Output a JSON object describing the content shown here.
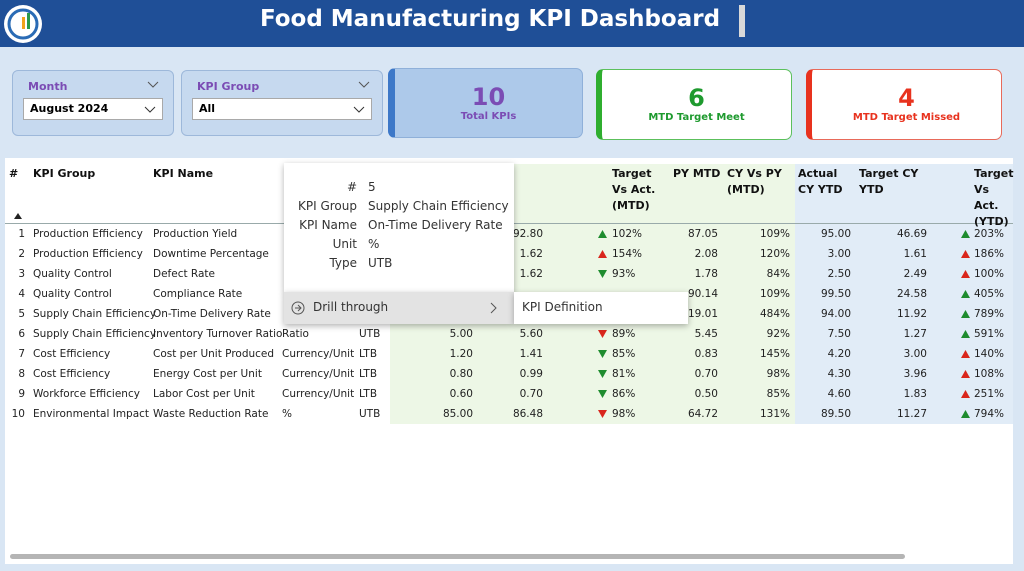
{
  "header": {
    "title": "Food Manufacturing KPI Dashboard"
  },
  "filters": [
    {
      "label": "Month",
      "value": "August 2024"
    },
    {
      "label": "KPI Group",
      "value": "All"
    }
  ],
  "cards": [
    {
      "value": "10",
      "label": "Total KPIs",
      "color": "#7b4cb4"
    },
    {
      "value": "6",
      "label": "MTD Target Meet",
      "color": "#1e9a2e"
    },
    {
      "value": "4",
      "label": "MTD Target Missed",
      "color": "#e8321e"
    }
  ],
  "table": {
    "headers": [
      "#",
      "KPI Group",
      "KPI Name",
      null,
      null,
      null,
      null,
      "Target Vs Act. (MTD)",
      "PY MTD",
      "CY Vs PY (MTD)",
      "Actual CY YTD",
      "Target CY YTD",
      "Target Vs Act. (YTD)"
    ],
    "rows": [
      {
        "cells": [
          "1",
          "Production Efficiency",
          "Production Yield",
          null,
          null,
          null,
          "92.80",
          "102%",
          "87.05",
          "109%",
          "95.00",
          "46.69",
          "203%"
        ],
        "arrows": [
          {
            "dir": "up",
            "color": "#1e8c2e"
          },
          {
            "dir": "up",
            "color": "#1e8c2e"
          }
        ]
      },
      {
        "cells": [
          "2",
          "Production Efficiency",
          "Downtime Percentage",
          null,
          null,
          null,
          "1.62",
          "154%",
          "2.08",
          "120%",
          "3.00",
          "1.61",
          "186%"
        ],
        "arrows": [
          {
            "dir": "up",
            "color": "#d9261c"
          },
          {
            "dir": "up",
            "color": "#d9261c"
          }
        ]
      },
      {
        "cells": [
          "3",
          "Quality Control",
          "Defect Rate",
          null,
          null,
          null,
          "1.62",
          "93%",
          "1.78",
          "84%",
          "2.50",
          "2.49",
          "100%"
        ],
        "arrows": [
          {
            "dir": "down",
            "color": "#1e8c2e"
          },
          {
            "dir": "up",
            "color": "#d9261c"
          }
        ]
      },
      {
        "cells": [
          "4",
          "Quality Control",
          "Compliance Rate",
          null,
          null,
          null,
          null,
          null,
          "90.14",
          "109%",
          "99.50",
          "24.58",
          "405%"
        ],
        "arrows": [
          null,
          {
            "dir": "up",
            "color": "#1e8c2e"
          }
        ]
      },
      {
        "cells": [
          "5",
          "Supply Chain Efficiency",
          "On-Time Delivery Rate",
          null,
          null,
          null,
          null,
          null,
          "19.01",
          "484%",
          "94.00",
          "11.92",
          "789%"
        ],
        "arrows": [
          null,
          {
            "dir": "up",
            "color": "#1e8c2e"
          }
        ]
      },
      {
        "cells": [
          "6",
          "Supply Chain Efficiency",
          "Inventory Turnover Ratio",
          "Ratio",
          "UTB",
          "5.00",
          "5.60",
          "89%",
          "5.45",
          "92%",
          "7.50",
          "1.27",
          "591%"
        ],
        "arrows": [
          {
            "dir": "down",
            "color": "#d9261c"
          },
          {
            "dir": "up",
            "color": "#1e8c2e"
          }
        ]
      },
      {
        "cells": [
          "7",
          "Cost Efficiency",
          "Cost per Unit Produced",
          "Currency/Unit",
          "LTB",
          "1.20",
          "1.41",
          "85%",
          "0.83",
          "145%",
          "4.20",
          "3.00",
          "140%"
        ],
        "arrows": [
          {
            "dir": "down",
            "color": "#1e8c2e"
          },
          {
            "dir": "up",
            "color": "#d9261c"
          }
        ]
      },
      {
        "cells": [
          "8",
          "Cost Efficiency",
          "Energy Cost per Unit",
          "Currency/Unit",
          "LTB",
          "0.80",
          "0.99",
          "81%",
          "0.70",
          "98%",
          "4.30",
          "3.96",
          "108%"
        ],
        "arrows": [
          {
            "dir": "down",
            "color": "#1e8c2e"
          },
          {
            "dir": "up",
            "color": "#d9261c"
          }
        ]
      },
      {
        "cells": [
          "9",
          "Workforce Efficiency",
          "Labor Cost per Unit",
          "Currency/Unit",
          "LTB",
          "0.60",
          "0.70",
          "86%",
          "0.50",
          "85%",
          "4.60",
          "1.83",
          "251%"
        ],
        "arrows": [
          {
            "dir": "down",
            "color": "#1e8c2e"
          },
          {
            "dir": "up",
            "color": "#d9261c"
          }
        ]
      },
      {
        "cells": [
          "10",
          "Environmental Impact",
          "Waste Reduction Rate",
          "%",
          "UTB",
          "85.00",
          "86.48",
          "98%",
          "64.72",
          "131%",
          "89.50",
          "11.27",
          "794%"
        ],
        "arrows": [
          {
            "dir": "down",
            "color": "#d9261c"
          },
          {
            "dir": "up",
            "color": "#1e8c2e"
          }
        ]
      }
    ]
  },
  "tooltip": {
    "rows": [
      [
        "#",
        "5"
      ],
      [
        "KPI Group",
        "Supply Chain Efficiency"
      ],
      [
        "KPI Name",
        "On-Time Delivery Rate"
      ],
      [
        "Unit",
        "%"
      ],
      [
        "Type",
        "UTB"
      ]
    ],
    "menu": "Drill through",
    "submenu": "KPI Definition"
  }
}
